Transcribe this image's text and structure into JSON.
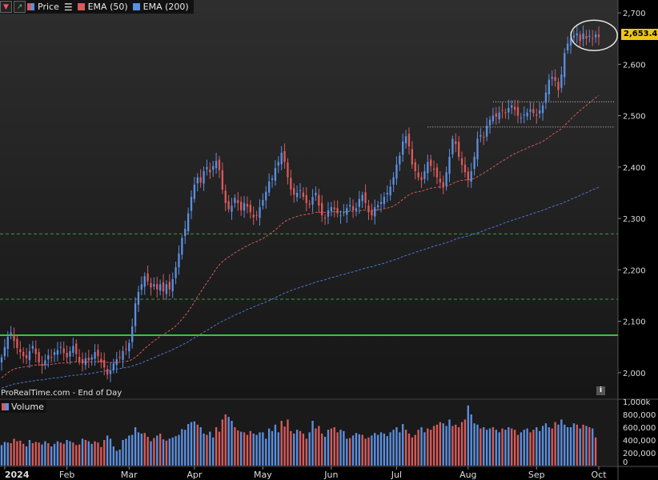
{
  "legend": {
    "price_label": "Price",
    "ema50_label": "EMA (50)",
    "ema200_label": "EMA (200)"
  },
  "volume_label": "Volume",
  "footer_note": "ProRealTime.com - End of Day",
  "info_icon": "i",
  "current_price": "2,653.49",
  "colors": {
    "up": "#5b8fe0",
    "down": "#d95a5a",
    "ema50": "#d95a5a",
    "ema200": "#4a78d0",
    "support": "#3cc43c",
    "level_dashed": "#3a9a3a",
    "resistance_dotted": "#cccccc",
    "price_tag": "#f0c419"
  },
  "chart_data": {
    "type": "candlestick",
    "title": "",
    "y_axis": {
      "range": [
        1950,
        2725
      ],
      "ticks": [
        "2,700",
        "2,600",
        "2,500",
        "2,400",
        "2,300",
        "2,200",
        "2,100",
        "2,000"
      ],
      "tick_values": [
        2700,
        2600,
        2500,
        2400,
        2300,
        2200,
        2100,
        2000
      ]
    },
    "volume_axis": {
      "range": [
        0,
        1000000
      ],
      "ticks": [
        "1,000k",
        "800,000",
        "600,000",
        "400,000",
        "200,000",
        "0"
      ],
      "tick_values": [
        1000000,
        800000,
        600000,
        400000,
        200000,
        0
      ]
    },
    "x_axis": {
      "labels": [
        "2024",
        "Feb",
        "Mar",
        "Apr",
        "May",
        "Jun",
        "Jul",
        "Aug",
        "Sep",
        "Oct"
      ],
      "label_index": [
        1,
        21,
        41,
        62,
        84,
        106,
        127,
        150,
        172,
        192
      ]
    },
    "horizontal_lines": [
      {
        "type": "solid",
        "value": 2073,
        "label": "support"
      },
      {
        "type": "dashed",
        "value": 2143
      },
      {
        "type": "dashed",
        "value": 2270
      },
      {
        "type": "dotted",
        "value": 2527,
        "start_index": 158
      },
      {
        "type": "dotted",
        "value": 2478,
        "start_index": 137
      }
    ],
    "annotation": {
      "type": "circle",
      "center_index": 190,
      "center_value": 2653
    },
    "closes": [
      2030,
      2050,
      2070,
      2078,
      2062,
      2048,
      2040,
      2032,
      2028,
      2042,
      2052,
      2036,
      2020,
      2014,
      2024,
      2034,
      2030,
      2040,
      2044,
      2050,
      2038,
      2030,
      2042,
      2052,
      2036,
      2022,
      2018,
      2028,
      2024,
      2030,
      2040,
      2032,
      2020,
      2010,
      1996,
      2004,
      2018,
      2026,
      2030,
      2042,
      2045,
      2058,
      2090,
      2135,
      2157,
      2172,
      2188,
      2178,
      2166,
      2172,
      2162,
      2172,
      2158,
      2172,
      2162,
      2182,
      2205,
      2232,
      2262,
      2280,
      2310,
      2342,
      2366,
      2380,
      2370,
      2392,
      2400,
      2390,
      2402,
      2412,
      2394,
      2356,
      2330,
      2318,
      2325,
      2340,
      2330,
      2316,
      2330,
      2323,
      2312,
      2302,
      2306,
      2322,
      2336,
      2352,
      2372,
      2378,
      2398,
      2410,
      2428,
      2410,
      2380,
      2356,
      2346,
      2350,
      2355,
      2342,
      2330,
      2328,
      2342,
      2350,
      2325,
      2306,
      2300,
      2316,
      2322,
      2318,
      2310,
      2306,
      2312,
      2320,
      2326,
      2316,
      2320,
      2338,
      2346,
      2330,
      2312,
      2306,
      2322,
      2326,
      2332,
      2342,
      2350,
      2362,
      2380,
      2405,
      2422,
      2450,
      2460,
      2440,
      2405,
      2392,
      2380,
      2375,
      2392,
      2410,
      2402,
      2395,
      2380,
      2370,
      2362,
      2390,
      2420,
      2455,
      2445,
      2420,
      2404,
      2390,
      2375,
      2392,
      2420,
      2455,
      2462,
      2458,
      2480,
      2492,
      2500,
      2498,
      2506,
      2510,
      2505,
      2515,
      2520,
      2512,
      2500,
      2496,
      2502,
      2506,
      2512,
      2505,
      2500,
      2510,
      2520,
      2545,
      2570,
      2575,
      2568,
      2550,
      2580,
      2622,
      2640,
      2650,
      2656,
      2660,
      2645,
      2660,
      2650,
      2655,
      2650,
      2658,
      2653
    ],
    "ema50": [
      1990,
      1995,
      2000,
      2004,
      2007,
      2009,
      2010,
      2011,
      2012,
      2013,
      2014,
      2015,
      2015,
      2015,
      2015,
      2016,
      2016,
      2017,
      2018,
      2019,
      2019,
      2019,
      2020,
      2021,
      2021,
      2021,
      2021,
      2021,
      2021,
      2021,
      2021,
      2022,
      2022,
      2021,
      2020,
      2020,
      2020,
      2020,
      2020,
      2021,
      2022,
      2023,
      2026,
      2030,
      2035,
      2041,
      2047,
      2052,
      2057,
      2062,
      2066,
      2071,
      2074,
      2078,
      2082,
      2086,
      2091,
      2097,
      2104,
      2111,
      2119,
      2128,
      2138,
      2148,
      2157,
      2166,
      2175,
      2184,
      2193,
      2202,
      2210,
      2216,
      2221,
      2225,
      2229,
      2233,
      2237,
      2240,
      2244,
      2247,
      2250,
      2253,
      2255,
      2258,
      2261,
      2265,
      2269,
      2273,
      2278,
      2283,
      2289,
      2294,
      2297,
      2300,
      2302,
      2304,
      2306,
      2307,
      2308,
      2309,
      2310,
      2312,
      2312,
      2312,
      2312,
      2312,
      2313,
      2313,
      2313,
      2313,
      2313,
      2313,
      2314,
      2314,
      2314,
      2315,
      2316,
      2316,
      2316,
      2316,
      2316,
      2317,
      2318,
      2319,
      2320,
      2322,
      2324,
      2328,
      2332,
      2337,
      2342,
      2346,
      2349,
      2351,
      2352,
      2353,
      2355,
      2357,
      2359,
      2360,
      2361,
      2361,
      2361,
      2362,
      2365,
      2368,
      2371,
      2373,
      2374,
      2375,
      2375,
      2376,
      2378,
      2381,
      2385,
      2388,
      2392,
      2396,
      2400,
      2404,
      2408,
      2412,
      2415,
      2419,
      2423,
      2426,
      2429,
      2432,
      2434,
      2437,
      2440,
      2442,
      2445,
      2447,
      2450,
      2454,
      2458,
      2463,
      2467,
      2470,
      2475,
      2481,
      2487,
      2493,
      2499,
      2505,
      2510,
      2515,
      2520,
      2525,
      2530,
      2535,
      2539
    ],
    "ema200": [
      1970,
      1972,
      1974,
      1976,
      1978,
      1979,
      1980,
      1981,
      1982,
      1983,
      1984,
      1985,
      1986,
      1986,
      1987,
      1988,
      1989,
      1990,
      1990,
      1991,
      1992,
      1993,
      1994,
      1995,
      1995,
      1996,
      1997,
      1997,
      1998,
      1999,
      2000,
      2001,
      2002,
      2003,
      2004,
      2005,
      2006,
      2007,
      2008,
      2009,
      2010,
      2011,
      2013,
      2015,
      2017,
      2019,
      2022,
      2024,
      2027,
      2029,
      2032,
      2035,
      2037,
      2040,
      2042,
      2045,
      2048,
      2051,
      2054,
      2057,
      2060,
      2064,
      2068,
      2071,
      2075,
      2079,
      2082,
      2086,
      2090,
      2093,
      2097,
      2100,
      2103,
      2106,
      2109,
      2112,
      2115,
      2117,
      2120,
      2123,
      2125,
      2128,
      2130,
      2133,
      2135,
      2138,
      2140,
      2143,
      2146,
      2149,
      2152,
      2155,
      2157,
      2160,
      2162,
      2164,
      2166,
      2168,
      2170,
      2172,
      2174,
      2176,
      2178,
      2179,
      2181,
      2183,
      2185,
      2186,
      2188,
      2190,
      2191,
      2193,
      2195,
      2196,
      2198,
      2200,
      2202,
      2203,
      2205,
      2206,
      2208,
      2210,
      2211,
      2213,
      2215,
      2217,
      2219,
      2221,
      2223,
      2226,
      2228,
      2230,
      2232,
      2234,
      2236,
      2238,
      2240,
      2242,
      2244,
      2246,
      2248,
      2249,
      2251,
      2253,
      2255,
      2257,
      2260,
      2262,
      2263,
      2265,
      2266,
      2268,
      2270,
      2272,
      2274,
      2276,
      2279,
      2281,
      2283,
      2285,
      2287,
      2290,
      2292,
      2294,
      2296,
      2298,
      2300,
      2302,
      2304,
      2306,
      2308,
      2310,
      2312,
      2314,
      2316,
      2318,
      2321,
      2323,
      2325,
      2327,
      2329,
      2332,
      2334,
      2337,
      2340,
      2342,
      2345,
      2348,
      2350,
      2353,
      2356,
      2358,
      2361
    ],
    "volume": [
      320000,
      370000,
      360000,
      350000,
      420000,
      380000,
      390000,
      340000,
      300000,
      400000,
      350000,
      370000,
      360000,
      330000,
      380000,
      350000,
      300000,
      340000,
      380000,
      360000,
      340000,
      400000,
      380000,
      360000,
      320000,
      330000,
      420000,
      400000,
      380000,
      340000,
      380000,
      360000,
      290000,
      400000,
      470000,
      420000,
      300000,
      230000,
      250000,
      400000,
      420000,
      470000,
      480000,
      600000,
      520000,
      500000,
      510000,
      450000,
      380000,
      430000,
      470000,
      500000,
      410000,
      390000,
      420000,
      440000,
      460000,
      480000,
      570000,
      560000,
      650000,
      680000,
      690000,
      640000,
      600000,
      500000,
      480000,
      530000,
      440000,
      600000,
      530000,
      720000,
      800000,
      760000,
      700000,
      600000,
      550000,
      530000,
      520000,
      480000,
      540000,
      500000,
      480000,
      520000,
      520000,
      420000,
      580000,
      540000,
      640000,
      520000,
      700000,
      610000,
      720000,
      540000,
      500000,
      560000,
      540000,
      500000,
      420000,
      520000,
      700000,
      580000,
      620000,
      500000,
      450000,
      560000,
      580000,
      600000,
      520000,
      560000,
      540000,
      420000,
      430000,
      470000,
      510000,
      490000,
      480000,
      420000,
      440000,
      470000,
      510000,
      480000,
      520000,
      500000,
      460000,
      520000,
      560000,
      600000,
      520000,
      650000,
      560000,
      500000,
      440000,
      480000,
      560000,
      600000,
      520000,
      580000,
      560000,
      620000,
      640000,
      680000,
      660000,
      620000,
      720000,
      620000,
      640000,
      600000,
      680000,
      720000,
      940000,
      800000,
      660000,
      640000,
      580000,
      600000,
      560000,
      580000,
      600000,
      560000,
      520000,
      580000,
      560000,
      600000,
      580000,
      560000,
      480000,
      520000,
      560000,
      580000,
      520000,
      560000,
      600000,
      540000,
      620000,
      660000,
      600000,
      580000,
      680000,
      640000,
      720000,
      640000,
      600000,
      600000,
      660000,
      640000,
      580000,
      640000,
      620000,
      600000,
      580000,
      440000
    ],
    "volume_up": [
      true,
      true,
      true,
      false,
      false,
      false,
      false,
      false,
      true,
      true,
      false,
      false,
      false,
      true,
      true,
      false,
      true,
      true,
      true,
      false,
      false,
      true,
      true,
      false,
      false,
      false,
      true,
      false,
      true,
      true,
      false,
      false,
      false,
      false,
      true,
      true,
      true,
      true,
      true,
      true,
      true,
      true,
      true,
      true,
      true,
      true,
      false,
      false,
      true,
      false,
      true,
      false,
      true,
      false,
      true,
      true,
      true,
      true,
      true,
      true,
      true,
      true,
      true,
      false,
      true,
      true,
      false,
      true,
      true,
      false,
      false,
      false,
      false,
      true,
      true,
      false,
      false,
      true,
      false,
      false,
      false,
      true,
      true,
      true,
      true,
      true,
      true,
      true,
      true,
      true,
      false,
      false,
      false,
      false,
      true,
      true,
      false,
      false,
      false,
      true,
      true,
      false,
      false,
      false,
      true,
      true,
      false,
      false,
      false,
      true,
      true,
      true,
      false,
      true,
      true,
      true,
      false,
      false,
      false,
      true,
      true,
      true,
      true,
      true,
      true,
      true,
      true,
      true,
      true,
      true,
      false,
      false,
      false,
      false,
      false,
      true,
      true,
      false,
      false,
      false,
      false,
      false,
      true,
      true,
      true,
      false,
      false,
      false,
      false,
      false,
      true,
      true,
      true,
      true,
      false,
      true,
      true,
      true,
      false,
      true,
      true,
      false,
      true,
      true,
      false,
      false,
      false,
      true,
      true,
      true,
      false,
      false,
      true,
      true,
      true,
      true,
      true,
      false,
      false,
      true,
      true,
      true,
      true,
      true,
      true,
      false,
      true,
      false,
      true,
      false,
      true,
      false
    ]
  }
}
